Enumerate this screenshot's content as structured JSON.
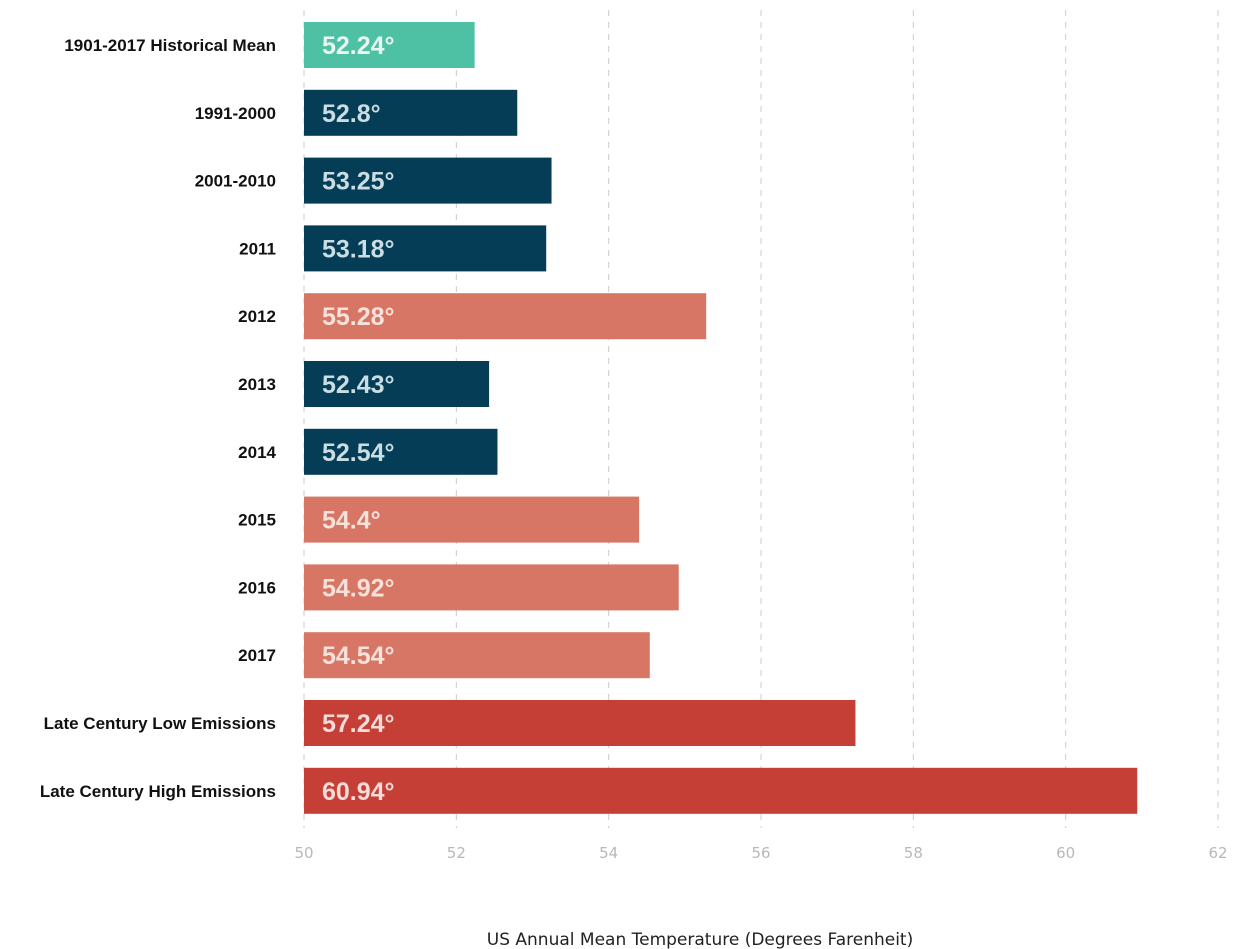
{
  "chart_data": {
    "type": "bar",
    "orientation": "horizontal",
    "categories": [
      "1901-2017 Historical Mean",
      "1991-2000",
      "2001-2010",
      "2011",
      "2012",
      "2013",
      "2014",
      "2015",
      "2016",
      "2017",
      "Late Century Low Emissions",
      "Late Century High Emissions"
    ],
    "values": [
      52.24,
      52.8,
      53.25,
      53.18,
      55.28,
      52.43,
      52.54,
      54.4,
      54.92,
      54.54,
      57.24,
      60.94
    ],
    "value_labels": [
      "52.24°",
      "52.8°",
      "53.25°",
      "53.18°",
      "55.28°",
      "52.43°",
      "52.54°",
      "54.4°",
      "54.92°",
      "54.54°",
      "57.24°",
      "60.94°"
    ],
    "bar_colors": [
      "#4ec1a4",
      "#053d57",
      "#053d57",
      "#053d57",
      "#d77664",
      "#053d57",
      "#053d57",
      "#d77664",
      "#d77664",
      "#d77664",
      "#c63f37",
      "#c63f37"
    ],
    "label_colors": [
      "#e9f6f1",
      "#c9dde3",
      "#c9dde3",
      "#c9dde3",
      "#f6e1db",
      "#c9dde3",
      "#c9dde3",
      "#f6e1db",
      "#f6e1db",
      "#f6e1db",
      "#f6dcd9",
      "#f6dcd9"
    ],
    "xlim": [
      50,
      62
    ],
    "xticks": [
      50,
      52,
      54,
      56,
      58,
      60,
      62
    ],
    "xtick_labels": [
      "50",
      "52",
      "54",
      "56",
      "58",
      "60",
      "62"
    ],
    "xlabel": "US Annual Mean Temperature (Degrees Farenheit)",
    "ylabel": "",
    "title": "",
    "grid": "vertical dashed",
    "legend": "none"
  }
}
